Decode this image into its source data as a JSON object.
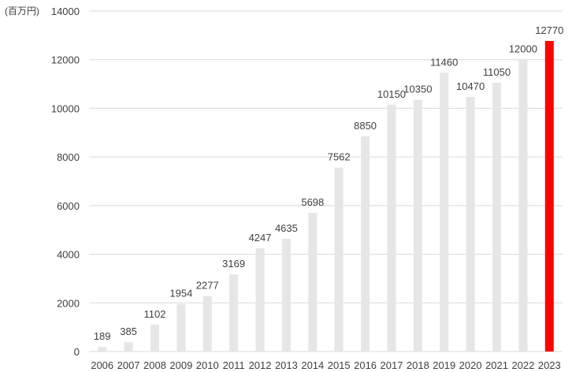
{
  "chart_data": {
    "type": "bar",
    "unit_label": "(百万円)",
    "categories": [
      "2006",
      "2007",
      "2008",
      "2009",
      "2010",
      "2011",
      "2012",
      "2013",
      "2014",
      "2015",
      "2016",
      "2017",
      "2018",
      "2019",
      "2020",
      "2021",
      "2022",
      "2023"
    ],
    "values": [
      189,
      385,
      1102,
      1954,
      2277,
      3169,
      4247,
      4635,
      5698,
      7562,
      8850,
      10150,
      10350,
      11460,
      10470,
      11050,
      12000,
      12770
    ],
    "ylim": [
      0,
      14000
    ],
    "yticks": [
      0,
      2000,
      4000,
      6000,
      8000,
      10000,
      12000,
      14000
    ],
    "grid": true,
    "legend": "none",
    "colors": {
      "default": "#e7e6e6",
      "highlight": "#ff0000",
      "grid": "#d9d9d9",
      "text": "#404040"
    },
    "highlight_category": "2023"
  }
}
